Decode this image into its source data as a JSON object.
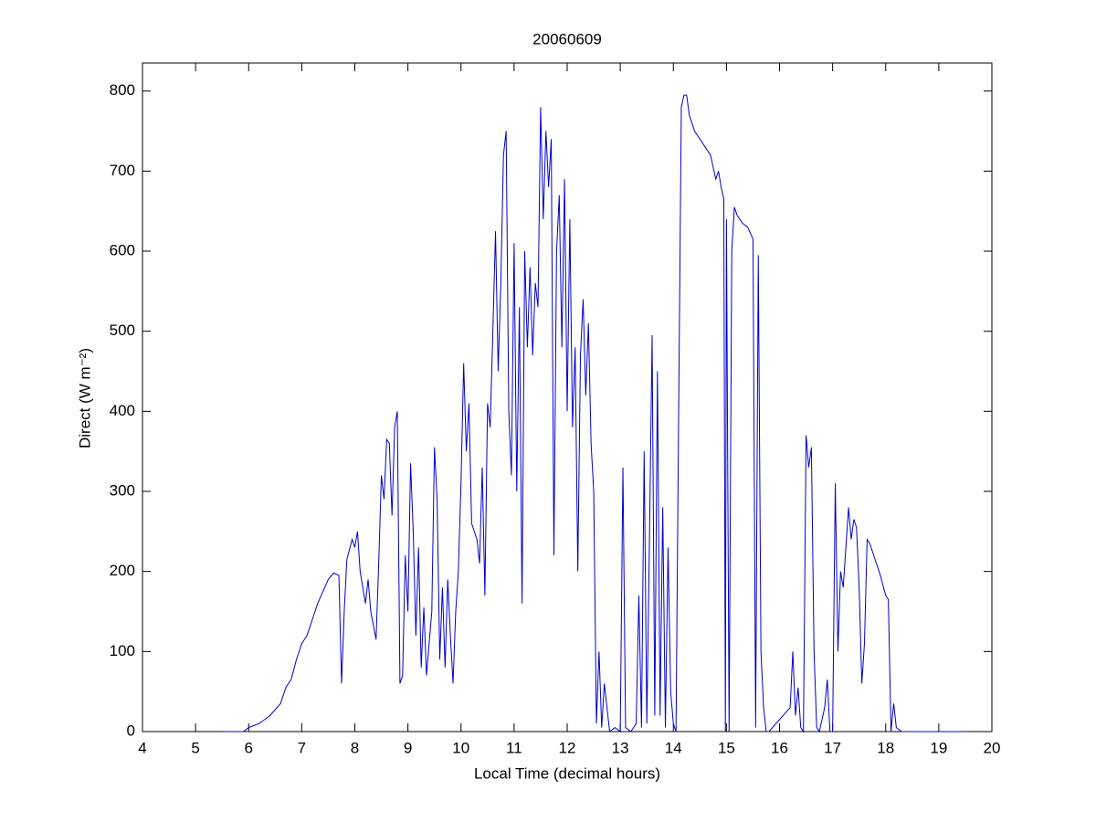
{
  "chart_data": {
    "type": "line",
    "title": "20060609",
    "xlabel": "Local Time (decimal hours)",
    "ylabel": "Direct (W m⁻²)",
    "color": "#0000cc",
    "xlim": [
      4,
      20
    ],
    "xticks": [
      4,
      5,
      6,
      7,
      8,
      9,
      10,
      11,
      12,
      13,
      14,
      15,
      16,
      17,
      18,
      19,
      20
    ],
    "ylim": [
      0,
      835
    ],
    "yticks": [
      0,
      100,
      200,
      300,
      400,
      500,
      600,
      700,
      800
    ],
    "x": [
      5.55,
      5.9,
      6.0,
      6.2,
      6.4,
      6.6,
      6.7,
      6.8,
      6.9,
      7.0,
      7.1,
      7.2,
      7.3,
      7.4,
      7.5,
      7.6,
      7.7,
      7.75,
      7.8,
      7.85,
      7.95,
      8.0,
      8.05,
      8.1,
      8.2,
      8.25,
      8.3,
      8.4,
      8.45,
      8.5,
      8.55,
      8.6,
      8.65,
      8.7,
      8.75,
      8.8,
      8.85,
      8.9,
      8.95,
      9.0,
      9.05,
      9.1,
      9.15,
      9.2,
      9.25,
      9.3,
      9.35,
      9.4,
      9.45,
      9.5,
      9.55,
      9.6,
      9.65,
      9.7,
      9.75,
      9.8,
      9.85,
      9.9,
      9.95,
      10.0,
      10.05,
      10.1,
      10.15,
      10.2,
      10.3,
      10.35,
      10.4,
      10.45,
      10.5,
      10.55,
      10.6,
      10.65,
      10.7,
      10.75,
      10.8,
      10.85,
      10.9,
      10.95,
      11.0,
      11.05,
      11.1,
      11.15,
      11.2,
      11.25,
      11.3,
      11.35,
      11.4,
      11.45,
      11.5,
      11.55,
      11.6,
      11.65,
      11.7,
      11.75,
      11.8,
      11.85,
      11.9,
      11.95,
      12.0,
      12.05,
      12.1,
      12.15,
      12.2,
      12.25,
      12.3,
      12.35,
      12.4,
      12.45,
      12.5,
      12.55,
      12.6,
      12.65,
      12.7,
      12.8,
      12.9,
      13.0,
      13.05,
      13.1,
      13.2,
      13.3,
      13.35,
      13.4,
      13.45,
      13.5,
      13.55,
      13.6,
      13.65,
      13.7,
      13.75,
      13.8,
      13.85,
      13.9,
      13.95,
      14.0,
      14.05,
      14.1,
      14.15,
      14.2,
      14.25,
      14.3,
      14.4,
      14.5,
      14.6,
      14.7,
      14.8,
      14.85,
      14.9,
      14.95,
      14.98,
      15.0,
      15.05,
      15.1,
      15.15,
      15.2,
      15.3,
      15.4,
      15.5,
      15.55,
      15.6,
      15.65,
      15.7,
      15.75,
      15.8,
      16.0,
      16.2,
      16.25,
      16.3,
      16.35,
      16.4,
      16.45,
      16.5,
      16.55,
      16.6,
      16.65,
      16.7,
      16.75,
      16.85,
      16.9,
      16.95,
      17.0,
      17.05,
      17.1,
      17.15,
      17.2,
      17.3,
      17.35,
      17.4,
      17.45,
      17.5,
      17.55,
      17.6,
      17.65,
      17.7,
      17.8,
      17.9,
      18.0,
      18.05,
      18.1,
      18.15,
      18.2,
      18.3,
      19.5
    ],
    "values": [
      0,
      0,
      5,
      10,
      20,
      35,
      55,
      65,
      90,
      110,
      120,
      140,
      160,
      175,
      190,
      198,
      195,
      60,
      150,
      215,
      240,
      230,
      250,
      200,
      160,
      190,
      150,
      115,
      210,
      320,
      290,
      365,
      360,
      270,
      380,
      400,
      60,
      70,
      220,
      150,
      335,
      250,
      120,
      230,
      80,
      155,
      70,
      110,
      150,
      355,
      290,
      90,
      180,
      80,
      190,
      120,
      60,
      150,
      200,
      310,
      460,
      350,
      410,
      260,
      240,
      210,
      330,
      170,
      410,
      380,
      500,
      625,
      450,
      560,
      720,
      750,
      400,
      320,
      610,
      300,
      530,
      160,
      600,
      480,
      580,
      470,
      560,
      530,
      780,
      640,
      750,
      680,
      740,
      220,
      600,
      670,
      480,
      690,
      400,
      640,
      380,
      480,
      200,
      470,
      540,
      420,
      510,
      360,
      300,
      10,
      100,
      5,
      60,
      0,
      5,
      0,
      330,
      5,
      0,
      10,
      170,
      5,
      350,
      10,
      240,
      495,
      20,
      450,
      20,
      280,
      5,
      230,
      50,
      10,
      0,
      400,
      780,
      795,
      795,
      770,
      750,
      740,
      730,
      720,
      690,
      700,
      680,
      665,
      0,
      640,
      0,
      600,
      655,
      645,
      635,
      630,
      615,
      5,
      595,
      100,
      30,
      0,
      0,
      15,
      30,
      100,
      20,
      55,
      5,
      0,
      370,
      330,
      355,
      100,
      5,
      0,
      30,
      65,
      0,
      0,
      310,
      100,
      200,
      180,
      280,
      240,
      265,
      255,
      180,
      60,
      110,
      240,
      235,
      215,
      195,
      170,
      165,
      0,
      35,
      5,
      0,
      0
    ]
  }
}
